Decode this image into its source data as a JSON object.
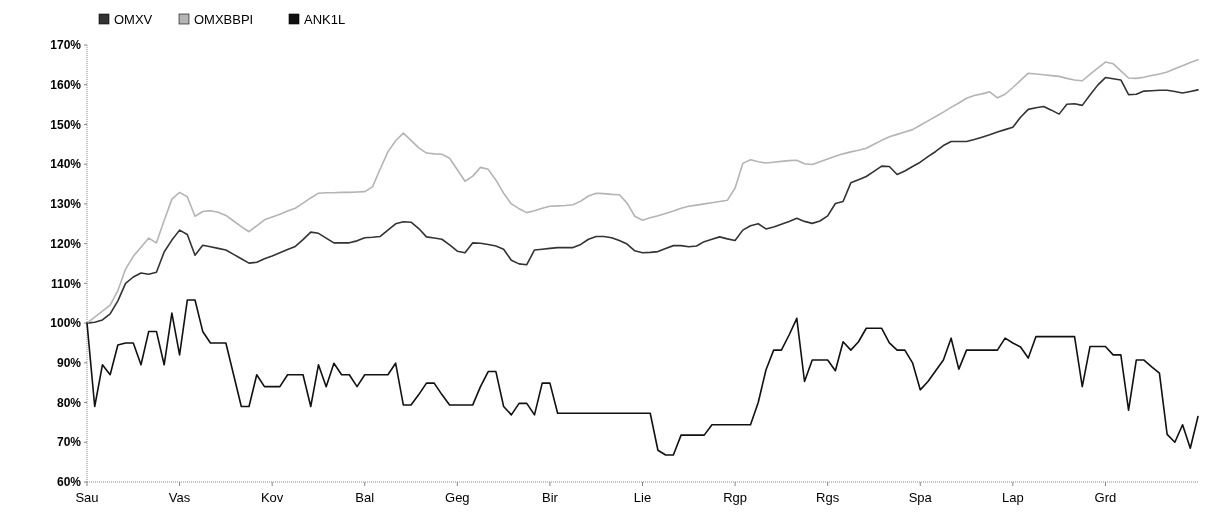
{
  "chart_data": {
    "type": "line",
    "categories": [
      "Sau",
      null,
      null,
      null,
      null,
      null,
      null,
      null,
      null,
      null,
      null,
      null,
      "Vas",
      null,
      null,
      null,
      null,
      null,
      null,
      null,
      null,
      null,
      null,
      null,
      "Kov",
      null,
      null,
      null,
      null,
      null,
      null,
      null,
      null,
      null,
      null,
      null,
      "Bal",
      null,
      null,
      null,
      null,
      null,
      null,
      null,
      null,
      null,
      null,
      null,
      "Geg",
      null,
      null,
      null,
      null,
      null,
      null,
      null,
      null,
      null,
      null,
      null,
      "Bir",
      null,
      null,
      null,
      null,
      null,
      null,
      null,
      null,
      null,
      null,
      null,
      "Lie",
      null,
      null,
      null,
      null,
      null,
      null,
      null,
      null,
      null,
      null,
      null,
      "Rgp",
      null,
      null,
      null,
      null,
      null,
      null,
      null,
      null,
      null,
      null,
      null,
      "Rgs",
      null,
      null,
      null,
      null,
      null,
      null,
      null,
      null,
      null,
      null,
      null,
      "Spa",
      null,
      null,
      null,
      null,
      null,
      null,
      null,
      null,
      null,
      null,
      null,
      "Lap",
      null,
      null,
      null,
      null,
      null,
      null,
      null,
      null,
      null,
      null,
      null,
      "Grd",
      null,
      null,
      null,
      null,
      null,
      null,
      null,
      null,
      null,
      null,
      null,
      null
    ],
    "ylim": [
      60,
      170
    ],
    "yticks": [
      {
        "value": 60,
        "label": "60%"
      },
      {
        "value": 70,
        "label": "70%"
      },
      {
        "value": 80,
        "label": "80%"
      },
      {
        "value": 90,
        "label": "90%"
      },
      {
        "value": 100,
        "label": "100%"
      },
      {
        "value": 110,
        "label": "110%"
      },
      {
        "value": 120,
        "label": "120%"
      },
      {
        "value": 130,
        "label": "130%"
      },
      {
        "value": 140,
        "label": "140%"
      },
      {
        "value": 150,
        "label": "150%"
      },
      {
        "value": 160,
        "label": "160%"
      },
      {
        "value": 170,
        "label": "170%"
      }
    ],
    "grid": false,
    "legend": "top left",
    "series": [
      {
        "name": "OMXV",
        "color": "#333333",
        "values": [
          100,
          100.2,
          100.8,
          102.3,
          105.6,
          110,
          111.6,
          112.6,
          112.3,
          112.8,
          117.9,
          120.9,
          123.4,
          122.3,
          117.1,
          119.6,
          119.2,
          118.8,
          118.4,
          117.3,
          116.2,
          115.1,
          115.3,
          116.2,
          116.9,
          117.7,
          118.5,
          119.3,
          121,
          122.9,
          122.6,
          121.4,
          120.2,
          120.2,
          120.2,
          120.7,
          121.5,
          121.6,
          121.8,
          123.4,
          125,
          125.5,
          125.4,
          123.8,
          121.7,
          121.4,
          121.1,
          119.7,
          118.1,
          117.7,
          120.2,
          120.1,
          119.8,
          119.4,
          118.6,
          115.8,
          114.9,
          114.7,
          118.4,
          118.6,
          118.8,
          119,
          119,
          119,
          119.8,
          121.1,
          121.8,
          121.8,
          121.5,
          120.8,
          119.9,
          118.2,
          117.7,
          117.8,
          118,
          118.8,
          119.5,
          119.5,
          119.2,
          119.4,
          120.5,
          121.1,
          121.7,
          121.2,
          120.8,
          123.4,
          124.5,
          125,
          123.7,
          124.2,
          124.9,
          125.6,
          126.4,
          125.6,
          125.1,
          125.7,
          127,
          130.1,
          130.6,
          135.3,
          136.1,
          136.9,
          138.2,
          139.5,
          139.4,
          137.4,
          138.3,
          139.4,
          140.5,
          141.9,
          143.2,
          144.7,
          145.7,
          145.7,
          145.7,
          146.2,
          146.8,
          147.4,
          148.1,
          148.7,
          149.3,
          151.8,
          153.8,
          154.2,
          154.5,
          153.6,
          152.6,
          155.1,
          155.2,
          154.8,
          157.4,
          159.9,
          161.8,
          161.5,
          161.2,
          157.5,
          157.6,
          158.4,
          158.5,
          158.6,
          158.6,
          158.3,
          157.9,
          158.3,
          158.7
        ]
      },
      {
        "name": "OMXBBPI",
        "color": "#b4b4b4",
        "values": [
          100,
          101.5,
          103,
          104.5,
          108.2,
          113.6,
          116.8,
          119.1,
          121.4,
          120.2,
          125.8,
          131.2,
          132.9,
          131.8,
          126.9,
          128.1,
          128.3,
          127.9,
          127.1,
          125.7,
          124.3,
          123,
          124.5,
          126,
          126.7,
          127.4,
          128.2,
          128.9,
          130.2,
          131.5,
          132.7,
          132.8,
          132.8,
          132.9,
          132.9,
          133,
          133.1,
          134.3,
          138.8,
          143.1,
          145.9,
          147.8,
          146,
          144.1,
          142.8,
          142.6,
          142.5,
          141.5,
          138.6,
          135.7,
          137,
          139.2,
          138.7,
          136,
          132.7,
          130,
          128.8,
          127.8,
          128.3,
          128.9,
          129.4,
          129.5,
          129.6,
          129.8,
          130.7,
          132,
          132.7,
          132.6,
          132.4,
          132.3,
          130.2,
          126.9,
          125.9,
          126.5,
          127,
          127.6,
          128.2,
          128.9,
          129.4,
          129.7,
          130,
          130.3,
          130.6,
          130.9,
          134,
          140.2,
          141.1,
          140.6,
          140.3,
          140.5,
          140.7,
          140.9,
          141,
          140.1,
          139.9,
          140.6,
          141.3,
          142,
          142.6,
          143.1,
          143.5,
          144,
          145,
          146,
          146.9,
          147.5,
          148.1,
          148.7,
          149.8,
          150.9,
          152,
          153.1,
          154.3,
          155.4,
          156.6,
          157.3,
          157.7,
          158.2,
          156.7,
          157.6,
          159.3,
          161.1,
          162.9,
          162.7,
          162.5,
          162.3,
          162.1,
          161.6,
          161.2,
          161,
          162.6,
          164.2,
          165.7,
          165.3,
          163.5,
          161.7,
          161.6,
          161.9,
          162.3,
          162.7,
          163.2,
          164,
          164.8,
          165.6,
          166.3
        ]
      },
      {
        "name": "ANK1L",
        "color": "#111111",
        "values": [
          100,
          79,
          89.5,
          87,
          94.5,
          95,
          95,
          89.5,
          97.9,
          97.9,
          89.5,
          102.5,
          92,
          105.8,
          105.8,
          97.9,
          95,
          95,
          95,
          87,
          79,
          79,
          87,
          84,
          84,
          84,
          87,
          87,
          87,
          79,
          89.5,
          84,
          89.9,
          87,
          87,
          84,
          87,
          87,
          87,
          87,
          89.9,
          79.4,
          79.4,
          82,
          84.9,
          84.9,
          82,
          79.4,
          79.4,
          79.4,
          79.4,
          84,
          87.8,
          87.8,
          79,
          76.9,
          79.8,
          79.8,
          76.9,
          84.9,
          84.9,
          77.3,
          77.3,
          77.3,
          77.3,
          77.3,
          77.3,
          77.3,
          77.3,
          77.3,
          77.3,
          77.3,
          77.3,
          77.3,
          68,
          66.8,
          66.8,
          71.8,
          71.8,
          71.8,
          71.8,
          74.4,
          74.4,
          74.4,
          74.4,
          74.4,
          74.4,
          80,
          88.2,
          93.2,
          93.2,
          97,
          101.2,
          85.3,
          90.7,
          90.7,
          90.7,
          88,
          95.3,
          93.2,
          95.3,
          98.7,
          98.7,
          98.7,
          95,
          93.2,
          93.2,
          90,
          83.2,
          85.3,
          88,
          90.7,
          96.2,
          88.4,
          93.2,
          93.2,
          93.2,
          93.2,
          93.2,
          96.2,
          95,
          94,
          91.2,
          96.6,
          96.6,
          96.6,
          96.6,
          96.6,
          96.6,
          84,
          94.1,
          94.1,
          94.1,
          92,
          92,
          78.1,
          90.7,
          90.7,
          89,
          87.4,
          72,
          70,
          74.4,
          68.5,
          76.5
        ]
      }
    ]
  }
}
